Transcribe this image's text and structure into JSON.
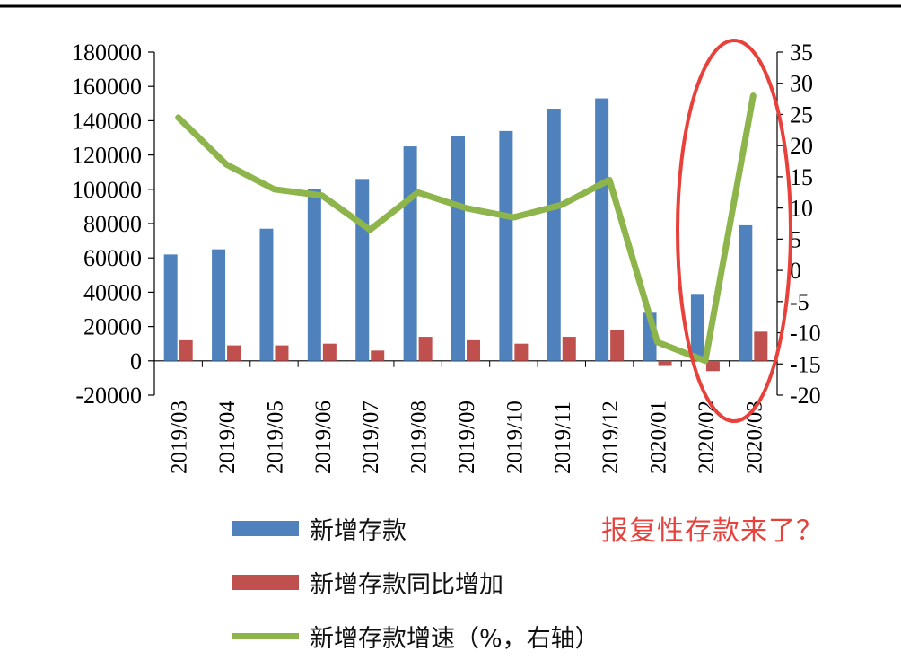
{
  "chart_data": {
    "type": "bar+line",
    "categories": [
      "2019/03",
      "2019/04",
      "2019/05",
      "2019/06",
      "2019/07",
      "2019/08",
      "2019/09",
      "2019/10",
      "2019/11",
      "2019/12",
      "2020/01",
      "2020/02",
      "2020/03"
    ],
    "series": [
      {
        "name": "新增存款",
        "type": "bar",
        "axis": "left",
        "color": "#4f81bd",
        "values": [
          62000,
          65000,
          77000,
          100000,
          106000,
          125000,
          131000,
          134000,
          147000,
          153000,
          28000,
          39000,
          79000
        ]
      },
      {
        "name": "新增存款同比增加",
        "type": "bar",
        "axis": "left",
        "color": "#c0504d",
        "values": [
          12000,
          9000,
          9000,
          10000,
          6000,
          14000,
          12000,
          10000,
          14000,
          18000,
          -3000,
          -6000,
          17000
        ]
      },
      {
        "name": "新增存款增速（%，右轴）",
        "type": "line",
        "axis": "right",
        "color": "#8db54b",
        "values": [
          24.5,
          17,
          13,
          12,
          6.5,
          12.5,
          10,
          8.5,
          10.5,
          14.5,
          -11.5,
          -14.5,
          28
        ]
      }
    ],
    "y_left": {
      "min": -20000,
      "max": 180000,
      "step": 20000,
      "ticks": [
        "-20000",
        "0",
        "20000",
        "40000",
        "60000",
        "80000",
        "100000",
        "120000",
        "140000",
        "160000",
        "180000"
      ]
    },
    "y_right": {
      "min": -20,
      "max": 35,
      "step": 5,
      "ticks": [
        "-20",
        "-15",
        "-10",
        "-5",
        "0",
        "5",
        "10",
        "15",
        "20",
        "25",
        "30",
        "35"
      ]
    },
    "annotation": "报复性存款来了？",
    "highlight_color": "#e8403a"
  }
}
